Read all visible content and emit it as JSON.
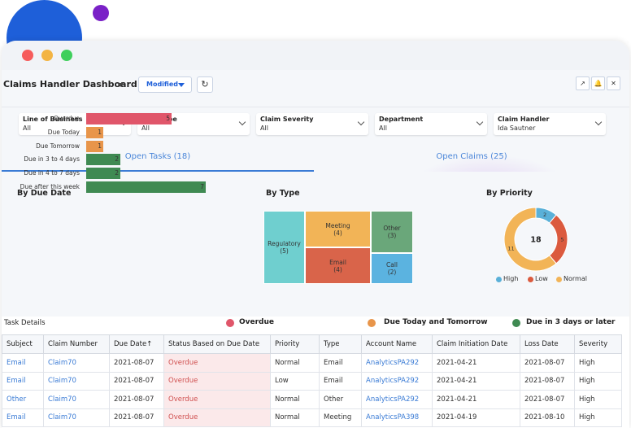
{
  "header": {
    "title": "Claims Handler Dashboard",
    "modified_label": "Modified",
    "refresh_icon": "refresh-icon",
    "external_icon": "external-link-icon",
    "bell_icon": "bell-icon",
    "close_icon": "close-icon"
  },
  "filters": [
    {
      "label": "Line of Business",
      "value": "All"
    },
    {
      "label": "Loss Type",
      "value": "All"
    },
    {
      "label": "Claim Severity",
      "value": "All"
    },
    {
      "label": "Department",
      "value": "All"
    },
    {
      "label": "Claim Handler",
      "value": "Ida Sautner"
    }
  ],
  "tabs": [
    {
      "label": "Open Tasks (18)"
    },
    {
      "label": "Open Claims (25)"
    }
  ],
  "charts": {
    "due_title": "By Due Date",
    "type_title": "By Type",
    "priority_title": "By Priority"
  },
  "chart_data": [
    {
      "type": "bar",
      "title": "By Due Date",
      "categories": [
        "Overdue",
        "Due Today",
        "Due Tomorrow",
        "Due in 3 to 4 days",
        "Due in 4 to 7 days",
        "Due after this week"
      ],
      "values": [
        5,
        1,
        1,
        2,
        2,
        7
      ],
      "colors": [
        "#e0566a",
        "#e8954a",
        "#e8954a",
        "#3f8a52",
        "#3f8a52",
        "#3f8a52"
      ]
    },
    {
      "type": "treemap",
      "title": "By Type",
      "items": [
        {
          "label": "Regulatory",
          "value": 5,
          "color": "#6fcfcf"
        },
        {
          "label": "Meeting",
          "value": 4,
          "color": "#f2b457"
        },
        {
          "label": "Email",
          "value": 4,
          "color": "#d9644a"
        },
        {
          "label": "Other",
          "value": 3,
          "color": "#6aa77a"
        },
        {
          "label": "Call",
          "value": 2,
          "color": "#5bb3e0"
        }
      ]
    },
    {
      "type": "pie",
      "title": "By Priority",
      "total": 18,
      "slices": [
        {
          "label": "High",
          "value": 2,
          "color": "#5ab0d8"
        },
        {
          "label": "Low",
          "value": 5,
          "color": "#db5a3e"
        },
        {
          "label": "Normal",
          "value": 11,
          "color": "#f2b457"
        }
      ]
    }
  ],
  "legend": {
    "overdue": "Overdue",
    "due_today": "Due Today and Tomorrow",
    "due_later": "Due in 3 days or later",
    "colors": {
      "overdue": "#e0566a",
      "due_today": "#e8954a",
      "due_later": "#3f8a52"
    }
  },
  "tasks": {
    "title": "Task Details",
    "columns": [
      "Subject",
      "Claim Number",
      "Due Date↑",
      "Status Based on Due Date",
      "Priority",
      "Type",
      "Account Name",
      "Claim Initiation Date",
      "Loss Date",
      "Severity"
    ],
    "rows": [
      [
        "Email",
        "Claim70",
        "2021-08-07",
        "Overdue",
        "Normal",
        "Email",
        "AnalyticsPA292",
        "2021-04-21",
        "2021-08-07",
        "High"
      ],
      [
        "Email",
        "Claim70",
        "2021-08-07",
        "Overdue",
        "Low",
        "Email",
        "AnalyticsPA292",
        "2021-04-21",
        "2021-08-07",
        "High"
      ],
      [
        "Other",
        "Claim70",
        "2021-08-07",
        "Overdue",
        "Normal",
        "Other",
        "AnalyticsPA292",
        "2021-04-21",
        "2021-08-07",
        "High"
      ],
      [
        "Email",
        "Claim70",
        "2021-08-07",
        "Overdue",
        "Normal",
        "Meeting",
        "AnalyticsPA398",
        "2021-04-19",
        "2021-08-10",
        "High"
      ]
    ]
  }
}
